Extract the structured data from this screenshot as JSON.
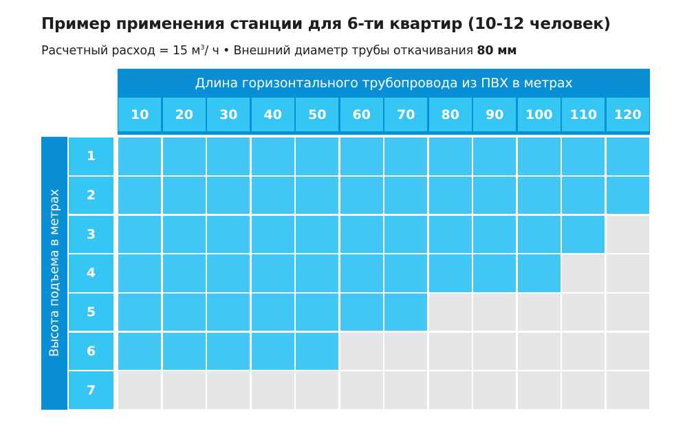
{
  "title": "Пример применения станции для 6-ти квартир (10-12 человек)",
  "subtitle": {
    "flow_label": "Расчетный расход = 15 м",
    "flow_sup": "3",
    "flow_unit": "/ ч",
    "separator": " • ",
    "diameter_label": "Внешний диаметр трубы откачивания ",
    "diameter_value": "80 мм"
  },
  "colors": {
    "header_band": "#0a8fd6",
    "header_cell": "#36c6f4",
    "allowed_cell": "#43c8f5",
    "not_allowed_cell": "#e5e6e8"
  },
  "chart_data": {
    "type": "table",
    "xlabel": "Длина горизонтального трубопровода из ПВХ в метрах",
    "ylabel": "Высота подъема в метрах",
    "columns": [
      "10",
      "20",
      "30",
      "40",
      "50",
      "60",
      "70",
      "80",
      "90",
      "100",
      "110",
      "120"
    ],
    "rows": [
      "1",
      "2",
      "3",
      "4",
      "5",
      "6",
      "7"
    ],
    "max_allowed_length_m": [
      120,
      120,
      110,
      100,
      70,
      50,
      0
    ],
    "matrix": [
      [
        1,
        1,
        1,
        1,
        1,
        1,
        1,
        1,
        1,
        1,
        1,
        1
      ],
      [
        1,
        1,
        1,
        1,
        1,
        1,
        1,
        1,
        1,
        1,
        1,
        1
      ],
      [
        1,
        1,
        1,
        1,
        1,
        1,
        1,
        1,
        1,
        1,
        1,
        0
      ],
      [
        1,
        1,
        1,
        1,
        1,
        1,
        1,
        1,
        1,
        1,
        0,
        0
      ],
      [
        1,
        1,
        1,
        1,
        1,
        1,
        1,
        0,
        0,
        0,
        0,
        0
      ],
      [
        1,
        1,
        1,
        1,
        1,
        0,
        0,
        0,
        0,
        0,
        0,
        0
      ],
      [
        0,
        0,
        0,
        0,
        0,
        0,
        0,
        0,
        0,
        0,
        0,
        0
      ]
    ]
  }
}
